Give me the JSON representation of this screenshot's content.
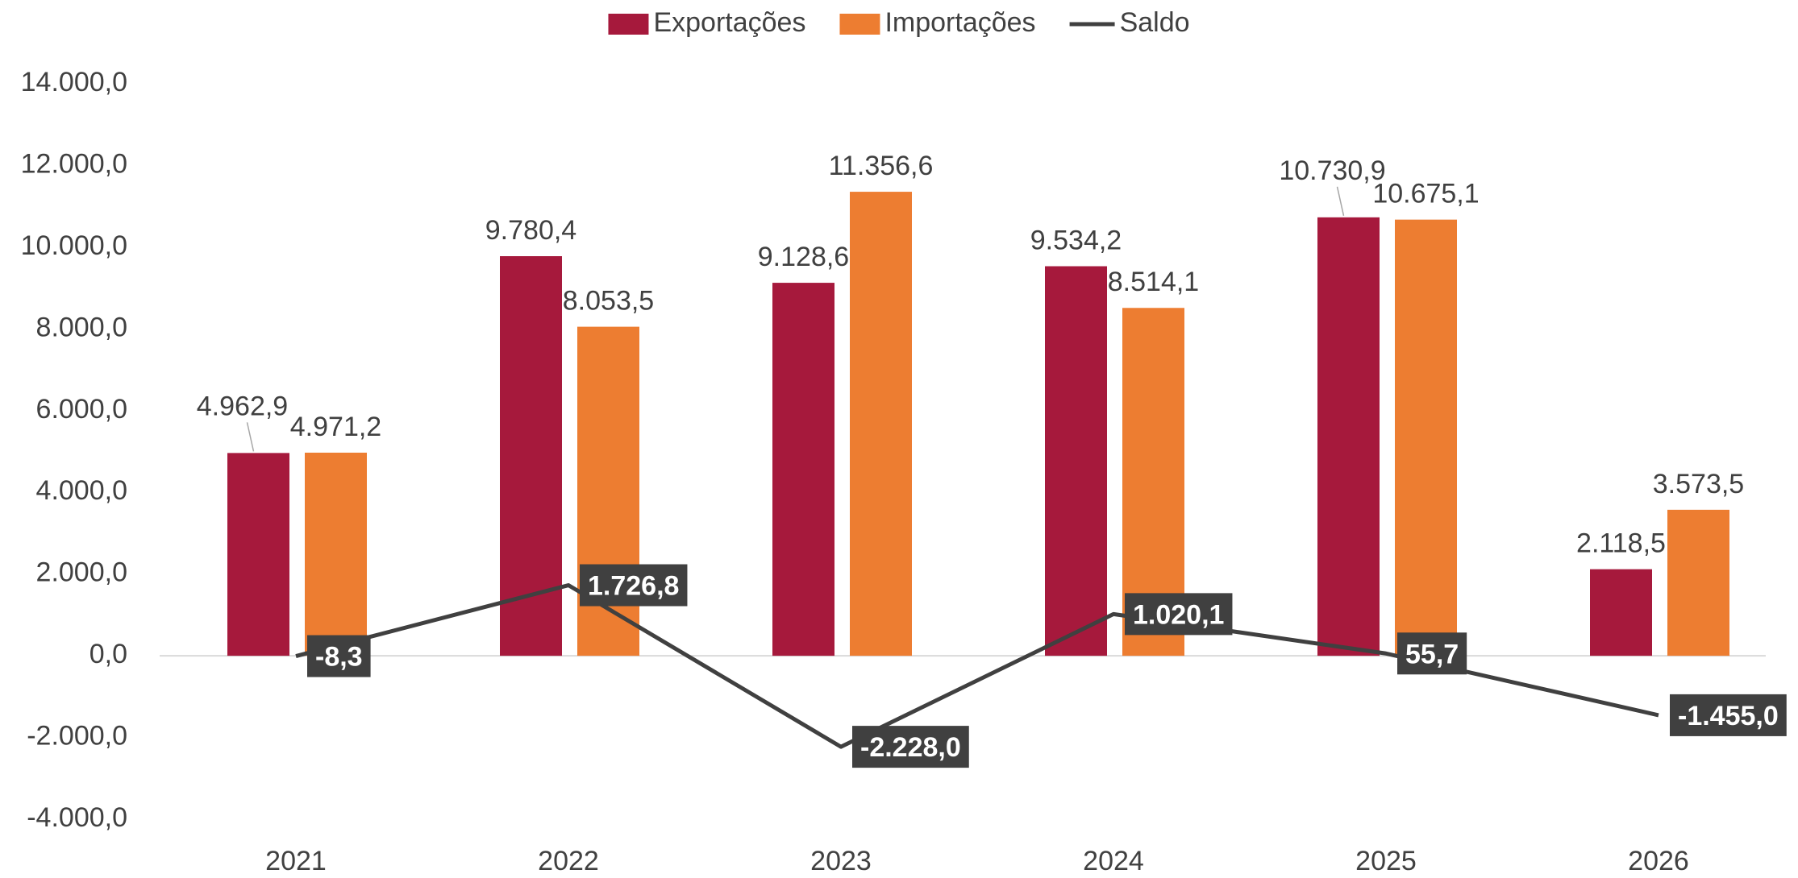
{
  "chart_data": {
    "type": "bar",
    "categories": [
      "2021",
      "2022",
      "2023",
      "2024",
      "2025",
      "2026"
    ],
    "series": [
      {
        "name": "Exportações",
        "type": "bar",
        "color": "#a6193c",
        "values": [
          4962.9,
          9780.4,
          9128.6,
          9534.2,
          10730.9,
          2118.5
        ],
        "value_labels": [
          "4.962,9",
          "9.780,4",
          "9.128,6",
          "9.534,2",
          "10.730,9",
          "2.118,5"
        ]
      },
      {
        "name": "Importações",
        "type": "bar",
        "color": "#ed7d31",
        "values": [
          4971.2,
          8053.5,
          11356.6,
          8514.1,
          10675.1,
          3573.5
        ],
        "value_labels": [
          "4.971,2",
          "8.053,5",
          "11.356,6",
          "8.514,1",
          "10.675,1",
          "3.573,5"
        ]
      },
      {
        "name": "Saldo",
        "type": "line",
        "color": "#404040",
        "values": [
          -8.3,
          1726.8,
          -2228.0,
          1020.1,
          55.7,
          -1455.0
        ],
        "value_labels": [
          "-8,3",
          "1.726,8",
          "-2.228,0",
          "1.020,1",
          "55,7",
          "-1.455,0"
        ]
      }
    ],
    "ylim": [
      -4000,
      14000
    ],
    "yticks": [
      {
        "value": -4000,
        "label": "-4.000,0"
      },
      {
        "value": -2000,
        "label": "-2.000,0"
      },
      {
        "value": 0,
        "label": "0,0"
      },
      {
        "value": 2000,
        "label": "2.000,0"
      },
      {
        "value": 4000,
        "label": "4.000,0"
      },
      {
        "value": 6000,
        "label": "6.000,0"
      },
      {
        "value": 8000,
        "label": "8.000,0"
      },
      {
        "value": 10000,
        "label": "10.000,0"
      },
      {
        "value": 12000,
        "label": "12.000,0"
      },
      {
        "value": 14000,
        "label": "14.000,0"
      }
    ],
    "legend": "top"
  }
}
